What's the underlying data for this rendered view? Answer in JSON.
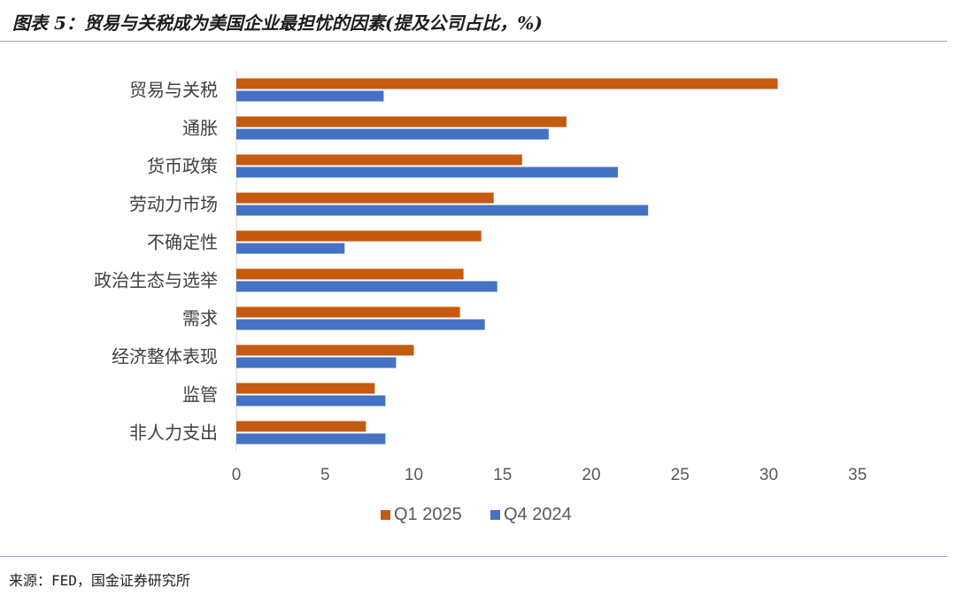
{
  "figure": {
    "title": "图表 5：贸易与关税成为美国企业最担忧的因素(提及公司占比，%)",
    "source": "来源：FED，国金证券研究所"
  },
  "chart_data": {
    "type": "bar",
    "orientation": "horizontal",
    "categories": [
      "贸易与关税",
      "通胀",
      "货币政策",
      "劳动力市场",
      "不确定性",
      "政治生态与选举",
      "需求",
      "经济整体表现",
      "监管",
      "非人力支出"
    ],
    "series": [
      {
        "name": "Q1 2025",
        "color": "#C55A11",
        "values": [
          30.5,
          18.6,
          16.1,
          14.5,
          13.8,
          12.8,
          12.6,
          10.0,
          7.8,
          7.3
        ]
      },
      {
        "name": "Q4 2024",
        "color": "#4472C4",
        "values": [
          8.3,
          17.6,
          21.5,
          23.2,
          6.1,
          14.7,
          14.0,
          9.0,
          8.4,
          8.4
        ]
      }
    ],
    "xlim": [
      0,
      35
    ],
    "xticks": [
      0,
      5,
      10,
      15,
      20,
      25,
      30,
      35
    ],
    "grid": false,
    "legend": "bottom"
  }
}
